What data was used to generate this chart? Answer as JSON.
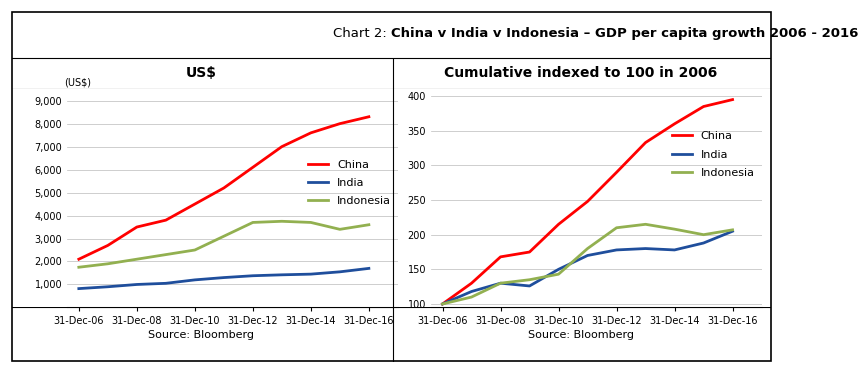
{
  "title_prefix": "Chart 2: ",
  "title_bold": "China v India v Indonesia – GDP per capita growth 2006 - 2016",
  "left_subtitle": "US$",
  "right_subtitle": "Cumulative indexed to 100 in 2006",
  "source": "Source: Bloomberg",
  "x_labels": [
    "31-Dec-06",
    "31-Dec-08",
    "31-Dec-10",
    "31-Dec-12",
    "31-Dec-14",
    "31-Dec-16"
  ],
  "x_values": [
    2006,
    2007,
    2008,
    2009,
    2010,
    2011,
    2012,
    2013,
    2014,
    2015,
    2016
  ],
  "left": {
    "china": [
      2100,
      2700,
      3500,
      3800,
      4500,
      5200,
      6100,
      7000,
      7600,
      8000,
      8300
    ],
    "india": [
      820,
      900,
      1000,
      1050,
      1200,
      1300,
      1380,
      1420,
      1450,
      1550,
      1700
    ],
    "indonesia": [
      1750,
      1900,
      2100,
      2300,
      2500,
      3100,
      3700,
      3750,
      3700,
      3400,
      3600
    ],
    "ylabel": "(US$)",
    "yticks": [
      0,
      1000,
      2000,
      3000,
      4000,
      5000,
      6000,
      7000,
      8000,
      9000
    ],
    "ylim": [
      0,
      9500
    ],
    "ytick_labels": [
      "",
      "1,000",
      "2,000",
      "3,000",
      "4,000",
      "5,000",
      "6,000",
      "7,000",
      "8,000",
      "9,000"
    ]
  },
  "right": {
    "china": [
      100,
      130,
      168,
      175,
      215,
      248,
      290,
      333,
      360,
      385,
      395
    ],
    "india": [
      100,
      118,
      130,
      126,
      150,
      170,
      178,
      180,
      178,
      188,
      205
    ],
    "indonesia": [
      100,
      110,
      130,
      135,
      143,
      180,
      210,
      215,
      208,
      200,
      207
    ],
    "yticks": [
      100,
      150,
      200,
      250,
      300,
      350,
      400
    ],
    "ylim": [
      95,
      410
    ],
    "ytick_labels": [
      "100",
      "150",
      "200",
      "250",
      "300",
      "350",
      "400"
    ]
  },
  "colors": {
    "china": "#FF0000",
    "india": "#1F4E9C",
    "indonesia": "#92B050"
  },
  "line_width": 2.0,
  "bg_color": "#FFFFFF",
  "grid_color": "#BBBBBB",
  "border_color": "#000000",
  "title_fontsize": 9.5,
  "subtitle_fontsize": 10,
  "legend_fontsize": 8,
  "tick_fontsize": 7,
  "source_fontsize": 8
}
